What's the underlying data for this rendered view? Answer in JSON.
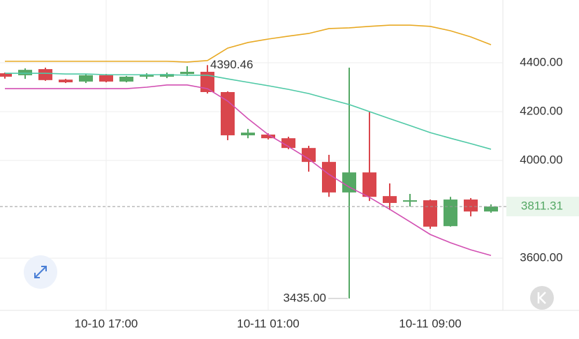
{
  "chart_data": {
    "type": "candlestick",
    "categories": [
      null,
      null,
      null,
      null,
      null,
      "10-10 17:00",
      null,
      null,
      null,
      null,
      null,
      null,
      null,
      "10-11 01:00",
      null,
      null,
      null,
      null,
      null,
      null,
      null,
      "10-11 09:00",
      null,
      null,
      null
    ],
    "open": [
      4357,
      4349,
      4374,
      4331,
      4323,
      4349,
      4323,
      4343,
      4343,
      4354,
      4363,
      4280,
      4103,
      4106,
      4091,
      4051,
      3994,
      3869,
      3951,
      3854,
      3831,
      3837,
      3731,
      3840,
      3791
    ],
    "high": [
      4360,
      4377,
      4380,
      4334,
      4354,
      4354,
      4346,
      4357,
      4360,
      4386,
      4390.46,
      4283,
      4129,
      4111,
      4097,
      4060,
      4023,
      4380,
      4200,
      3906,
      3863,
      3840,
      3851,
      3846,
      3820
    ],
    "low": [
      4335,
      4334,
      4326,
      4317,
      4317,
      4320,
      4320,
      4334,
      4337,
      4346,
      4274,
      4083,
      4091,
      4086,
      4046,
      3954,
      3851,
      3435,
      3834,
      3797,
      3811,
      3720,
      3729,
      3771,
      3786
    ],
    "close": [
      4343,
      4371,
      4329,
      4320,
      4349,
      4323,
      4343,
      4349,
      4354,
      4363,
      4280,
      4103,
      4114,
      4091,
      4051,
      3994,
      3869,
      3951,
      3851,
      3826,
      3837,
      3729,
      3840,
      3791,
      3811.31
    ],
    "up_color": "#55a865",
    "down_color": "#d9464c",
    "lines": [
      {
        "color": "#e8a923",
        "values": [
          4406,
          4406,
          4406,
          4406,
          4406,
          4406,
          4406,
          4406,
          4406,
          4403,
          4409,
          4460,
          4483,
          4497,
          4509,
          4520,
          4540,
          4543,
          4549,
          4554,
          4554,
          4549,
          4531,
          4506,
          4474
        ]
      },
      {
        "color": "#4fc9a6",
        "values": [
          4357,
          4357,
          4357,
          4354,
          4354,
          4351,
          4351,
          4351,
          4351,
          4349,
          4349,
          4334,
          4320,
          4306,
          4291,
          4274,
          4251,
          4229,
          4200,
          4171,
          4143,
          4114,
          4091,
          4069,
          4046
        ]
      },
      {
        "color": "#d24fb2",
        "values": [
          4294,
          4294,
          4294,
          4294,
          4294,
          4294,
          4294,
          4300,
          4309,
          4309,
          4294,
          4243,
          4171,
          4106,
          4057,
          4006,
          3943,
          3891,
          3849,
          3800,
          3749,
          3697,
          3663,
          3634,
          3611
        ]
      }
    ],
    "ylim": [
      3386,
      4657
    ],
    "yticks": [
      {
        "value": 3600,
        "label": "3600.00"
      },
      {
        "value": 4000,
        "label": "4000.00"
      },
      {
        "value": 4200,
        "label": "4200.00"
      },
      {
        "value": 4400,
        "label": "4400.00"
      }
    ],
    "grid": true,
    "last_price": 3811.31,
    "annotations": [
      {
        "value": 4390.46,
        "label": "4390.46"
      },
      {
        "value": 3435,
        "label": "3435.00"
      }
    ]
  }
}
